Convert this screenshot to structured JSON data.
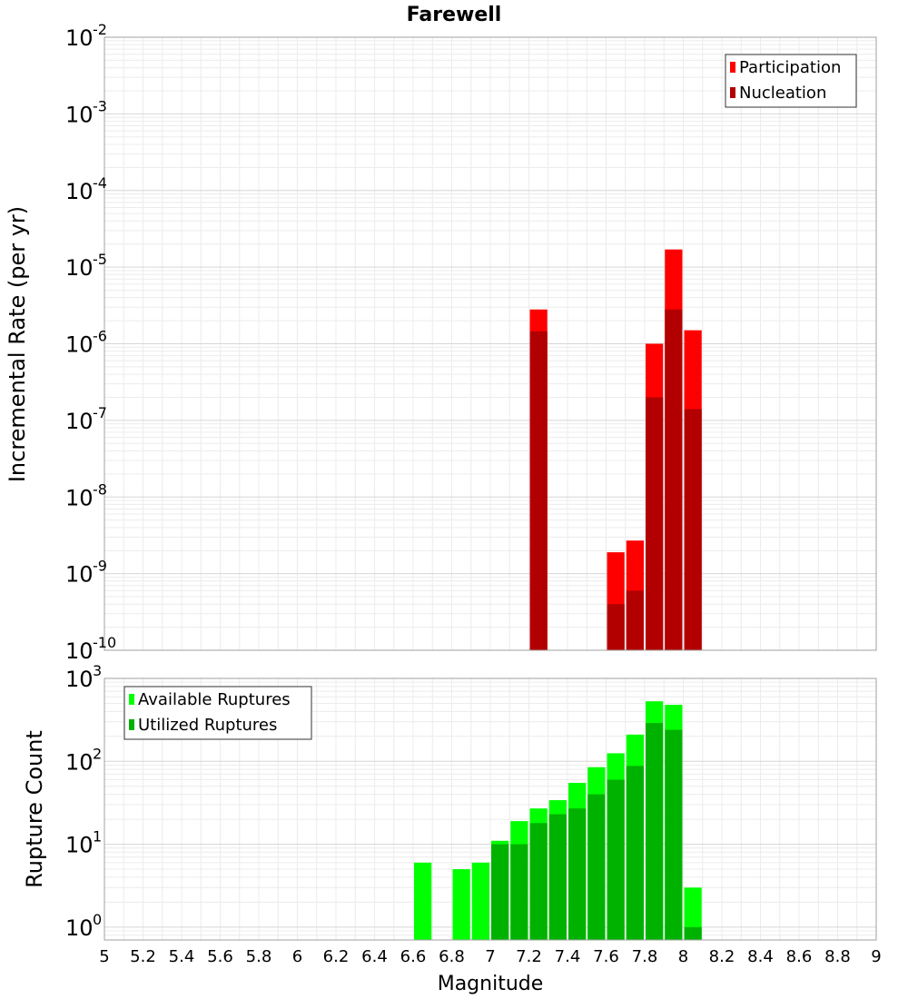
{
  "chart_data": [
    {
      "type": "bar",
      "title": "Farewell",
      "xlabel": "Magnitude",
      "ylabel": "Incremental Rate (per yr)",
      "yscale": "log",
      "xlim": [
        5,
        9
      ],
      "ylim": [
        1e-10,
        0.01
      ],
      "ytick_exponents": [
        "-2",
        "-3",
        "-4",
        "-5",
        "-6",
        "-7",
        "-8",
        "-9",
        "-10"
      ],
      "legend_position": "top-right",
      "bar_width": 0.1,
      "series": [
        {
          "name": "Participation",
          "color": "#ff0000",
          "x": [
            7.25,
            7.65,
            7.75,
            7.85,
            7.95,
            8.05
          ],
          "values": [
            2.8e-06,
            1.9e-09,
            2.7e-09,
            1e-06,
            1.7e-05,
            1.5e-06
          ]
        },
        {
          "name": "Nucleation",
          "color": "#b20000",
          "x": [
            7.25,
            7.65,
            7.75,
            7.85,
            7.95,
            8.05
          ],
          "values": [
            1.45e-06,
            4e-10,
            6e-10,
            2e-07,
            2.8e-06,
            1.4e-07
          ]
        }
      ]
    },
    {
      "type": "bar",
      "title": "",
      "xlabel": "Magnitude",
      "ylabel": "Rupture Count",
      "yscale": "log",
      "xlim": [
        5,
        9
      ],
      "ylim": [
        0.7,
        1000
      ],
      "ytick_exponents": [
        "3",
        "2",
        "1",
        "0"
      ],
      "xticks": [
        "5",
        "5.2",
        "5.4",
        "5.6",
        "5.8",
        "6",
        "6.2",
        "6.4",
        "6.6",
        "6.8",
        "7",
        "7.2",
        "7.4",
        "7.6",
        "7.8",
        "8",
        "8.2",
        "8.4",
        "8.6",
        "8.8",
        "9"
      ],
      "legend_position": "top-left",
      "bar_width": 0.1,
      "series": [
        {
          "name": "Available Ruptures",
          "color": "#00ff00",
          "x": [
            6.65,
            6.85,
            6.95,
            7.05,
            7.15,
            7.25,
            7.35,
            7.45,
            7.55,
            7.65,
            7.75,
            7.85,
            7.95,
            8.05
          ],
          "values": [
            6,
            5,
            6,
            11,
            19,
            27,
            34,
            55,
            85,
            125,
            210,
            530,
            480,
            3
          ]
        },
        {
          "name": "Utilized Ruptures",
          "color": "#00b200",
          "x": [
            7.05,
            7.15,
            7.25,
            7.35,
            7.45,
            7.55,
            7.65,
            7.75,
            7.85,
            7.95,
            8.05
          ],
          "values": [
            10,
            10,
            18,
            23,
            27,
            40,
            60,
            88,
            290,
            240,
            1
          ]
        }
      ]
    }
  ]
}
